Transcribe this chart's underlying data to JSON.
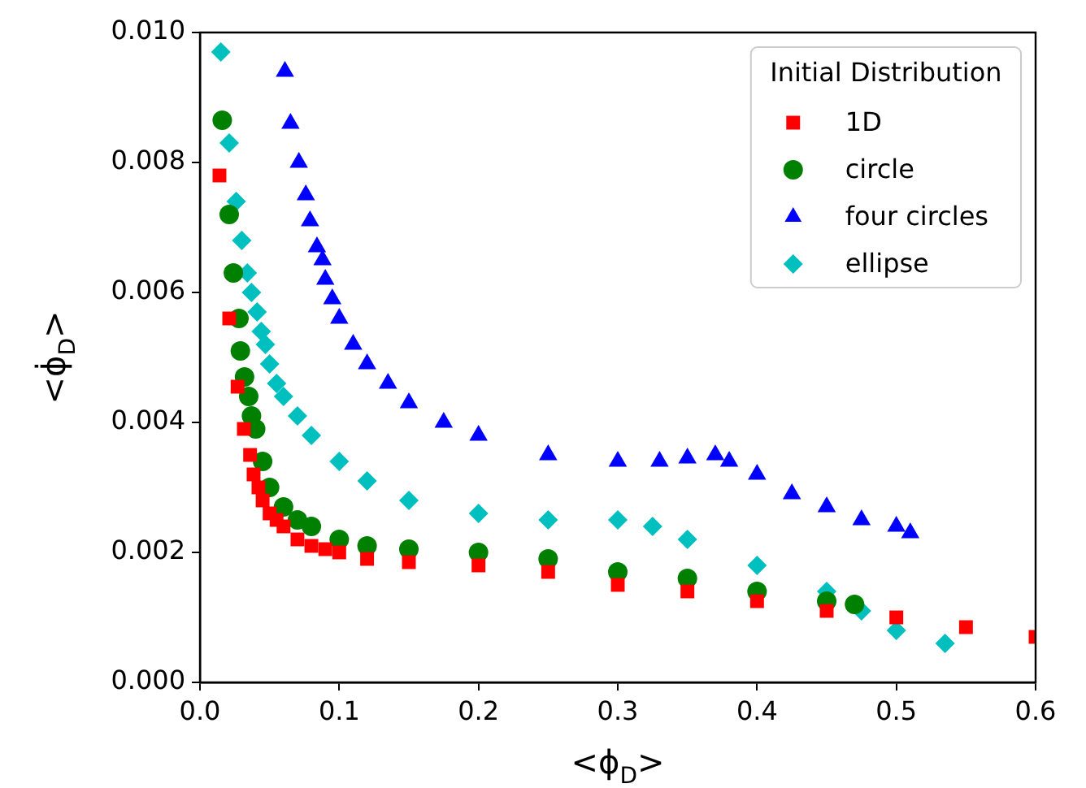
{
  "chart_data": {
    "type": "scatter",
    "xlabel": "<ϕ$_{D}$>",
    "ylabel": "<ϕ̇$_{D}$>",
    "legend_title": "Initial Distribution",
    "legend": "top right",
    "grid": false,
    "xlim": [
      0,
      0.6
    ],
    "xticks": [
      {
        "value": 0,
        "label": "0.0"
      },
      {
        "value": 0.1,
        "label": "0.1"
      },
      {
        "value": 0.2,
        "label": "0.2"
      },
      {
        "value": 0.3,
        "label": "0.3"
      },
      {
        "value": 0.4,
        "label": "0.4"
      },
      {
        "value": 0.5,
        "label": "0.5"
      },
      {
        "value": 0.6,
        "label": "0.6"
      }
    ],
    "ylim": [
      0,
      0.01
    ],
    "yticks": [
      {
        "value": 0,
        "label": "0.000"
      },
      {
        "value": 0.002,
        "label": "0.002"
      },
      {
        "value": 0.004,
        "label": "0.004"
      },
      {
        "value": 0.006,
        "label": "0.006"
      },
      {
        "value": 0.008,
        "label": "0.008"
      },
      {
        "value": 0.01,
        "label": "0.010"
      }
    ],
    "series": [
      {
        "name": "1D",
        "color": "#ff0000",
        "marker": "square",
        "x": [
          0.014,
          0.021,
          0.027,
          0.0315,
          0.036,
          0.0385,
          0.042,
          0.045,
          0.05,
          0.055,
          0.06,
          0.07,
          0.08,
          0.09,
          0.1,
          0.12,
          0.15,
          0.2,
          0.25,
          0.3,
          0.35,
          0.4,
          0.45,
          0.5,
          0.55,
          0.6
        ],
        "values": [
          0.0078,
          0.0056,
          0.00455,
          0.0039,
          0.0035,
          0.0032,
          0.003,
          0.0028,
          0.0026,
          0.0025,
          0.0024,
          0.0022,
          0.0021,
          0.00205,
          0.002,
          0.0019,
          0.00185,
          0.0018,
          0.0017,
          0.0015,
          0.0014,
          0.00125,
          0.0011,
          0.001,
          0.00085,
          0.0007
        ]
      },
      {
        "name": "circle",
        "color": "#008000",
        "marker": "circle",
        "x": [
          0.016,
          0.021,
          0.024,
          0.028,
          0.029,
          0.032,
          0.035,
          0.037,
          0.04,
          0.045,
          0.05,
          0.06,
          0.07,
          0.08,
          0.1,
          0.12,
          0.15,
          0.2,
          0.25,
          0.3,
          0.35,
          0.4,
          0.45,
          0.47
        ],
        "values": [
          0.00865,
          0.0072,
          0.0063,
          0.0056,
          0.0051,
          0.0047,
          0.0044,
          0.0041,
          0.0039,
          0.0034,
          0.003,
          0.0027,
          0.0025,
          0.0024,
          0.0022,
          0.0021,
          0.00205,
          0.002,
          0.0019,
          0.0017,
          0.0016,
          0.0014,
          0.00125,
          0.0012
        ]
      },
      {
        "name": "four circles",
        "color": "#0000ff",
        "marker": "triangle",
        "x": [
          0.061,
          0.065,
          0.071,
          0.076,
          0.079,
          0.084,
          0.088,
          0.09,
          0.095,
          0.1,
          0.11,
          0.12,
          0.135,
          0.15,
          0.175,
          0.2,
          0.25,
          0.3,
          0.33,
          0.35,
          0.37,
          0.38,
          0.4,
          0.425,
          0.45,
          0.475,
          0.5,
          0.51
        ],
        "values": [
          0.0094,
          0.0086,
          0.008,
          0.0075,
          0.0071,
          0.0067,
          0.0065,
          0.0062,
          0.0059,
          0.0056,
          0.0052,
          0.0049,
          0.0046,
          0.0043,
          0.004,
          0.0038,
          0.0035,
          0.0034,
          0.0034,
          0.00345,
          0.0035,
          0.0034,
          0.0032,
          0.0029,
          0.0027,
          0.0025,
          0.0024,
          0.0023
        ]
      },
      {
        "name": "ellipse",
        "color": "#00bfbf",
        "marker": "diamond",
        "x": [
          0.015,
          0.021,
          0.026,
          0.03,
          0.034,
          0.037,
          0.041,
          0.044,
          0.047,
          0.05,
          0.055,
          0.06,
          0.07,
          0.08,
          0.1,
          0.12,
          0.15,
          0.2,
          0.25,
          0.3,
          0.325,
          0.35,
          0.4,
          0.45,
          0.475,
          0.5,
          0.535
        ],
        "values": [
          0.0097,
          0.0083,
          0.0074,
          0.0068,
          0.0063,
          0.006,
          0.0057,
          0.0054,
          0.0052,
          0.0049,
          0.0046,
          0.0044,
          0.0041,
          0.0038,
          0.0034,
          0.0031,
          0.0028,
          0.0026,
          0.0025,
          0.0025,
          0.0024,
          0.0022,
          0.0018,
          0.0014,
          0.0011,
          0.0008,
          0.0006
        ]
      }
    ]
  }
}
